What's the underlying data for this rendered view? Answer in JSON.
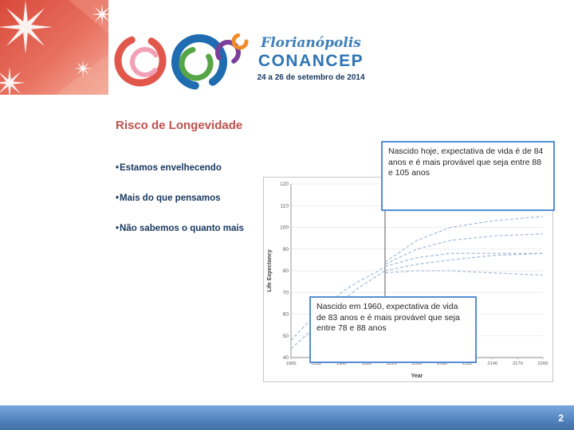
{
  "slide": {
    "title": "Risco de Longevidade",
    "page_number": "2"
  },
  "logo": {
    "city": "Florianópolis",
    "name": "CONANCEP",
    "dates": "24 a 26 de setembro de 2014"
  },
  "bullets": {
    "marker": "•",
    "items": [
      "Estamos envelhecendo",
      "Mais do que pensamos",
      "Não sabemos o quanto mais"
    ]
  },
  "callouts": [
    {
      "text": "Nascido hoje, expectativa de vida é de 84 anos e é mais provável que seja entre 88 e 105 anos"
    },
    {
      "text": "Nascido em 1960, expectativa de vida de 83 anos e é mais provável que seja entre 78 e 88 anos"
    }
  ],
  "colors": {
    "title_red": "#C0504D",
    "accent_blue": "#4F81BD",
    "callout_border_blue": "#558ED5",
    "dark_blue": "#17375E",
    "corner_red": "#D84A3B",
    "chart_line": "#9eb6d4"
  },
  "chart_data": {
    "type": "line",
    "title": "",
    "xlabel": "Year",
    "ylabel": "Life Expectancy",
    "xlim": [
      1900,
      2200
    ],
    "ylim": [
      40,
      120
    ],
    "x_ticks": [
      1900,
      1930,
      1960,
      1990,
      2020,
      2050,
      2080,
      2110,
      2140,
      2170,
      2200
    ],
    "y_ticks": [
      40,
      50,
      60,
      70,
      80,
      90,
      100,
      110,
      120
    ],
    "vline_x": 2012,
    "grid": true,
    "legend": "none",
    "line_style": "dashed",
    "line_color": "#9eb6d4",
    "series": [
      {
        "name": "expectativa-historica-superior",
        "points": [
          [
            1900,
            48
          ],
          [
            1920,
            56
          ],
          [
            1940,
            63
          ],
          [
            1960,
            70
          ],
          [
            1980,
            75
          ],
          [
            2000,
            79
          ],
          [
            2012,
            82
          ]
        ]
      },
      {
        "name": "expectativa-historica-inferior",
        "points": [
          [
            1900,
            44
          ],
          [
            1920,
            51
          ],
          [
            1940,
            59
          ],
          [
            1960,
            66
          ],
          [
            1980,
            72
          ],
          [
            2000,
            77
          ],
          [
            2012,
            80
          ]
        ]
      },
      {
        "name": "projecao-nascido-hoje-superior",
        "points": [
          [
            2012,
            84
          ],
          [
            2050,
            94
          ],
          [
            2090,
            100
          ],
          [
            2140,
            103
          ],
          [
            2200,
            105
          ]
        ]
      },
      {
        "name": "projecao-nascido-hoje-central",
        "points": [
          [
            2012,
            83
          ],
          [
            2050,
            90
          ],
          [
            2090,
            94
          ],
          [
            2140,
            96
          ],
          [
            2200,
            97
          ]
        ]
      },
      {
        "name": "projecao-nascido-hoje-inferior",
        "points": [
          [
            2012,
            82
          ],
          [
            2050,
            86
          ],
          [
            2090,
            88
          ],
          [
            2140,
            88
          ],
          [
            2200,
            88
          ]
        ]
      },
      {
        "name": "projecao-nascido-1960-superior",
        "points": [
          [
            2012,
            80
          ],
          [
            2050,
            83
          ],
          [
            2090,
            85
          ],
          [
            2140,
            87
          ],
          [
            2200,
            88
          ]
        ]
      },
      {
        "name": "projecao-nascido-1960-inferior",
        "points": [
          [
            2012,
            79
          ],
          [
            2050,
            80
          ],
          [
            2090,
            80
          ],
          [
            2140,
            79
          ],
          [
            2200,
            78
          ]
        ]
      }
    ],
    "annotations": [
      "Nascido hoje, expectativa de vida é de 84 anos e é mais provável que seja entre 88 e 105 anos",
      "Nascido em 1960, expectativa de vida de 83 anos e é mais provável que seja entre 78 e 88 anos"
    ]
  }
}
